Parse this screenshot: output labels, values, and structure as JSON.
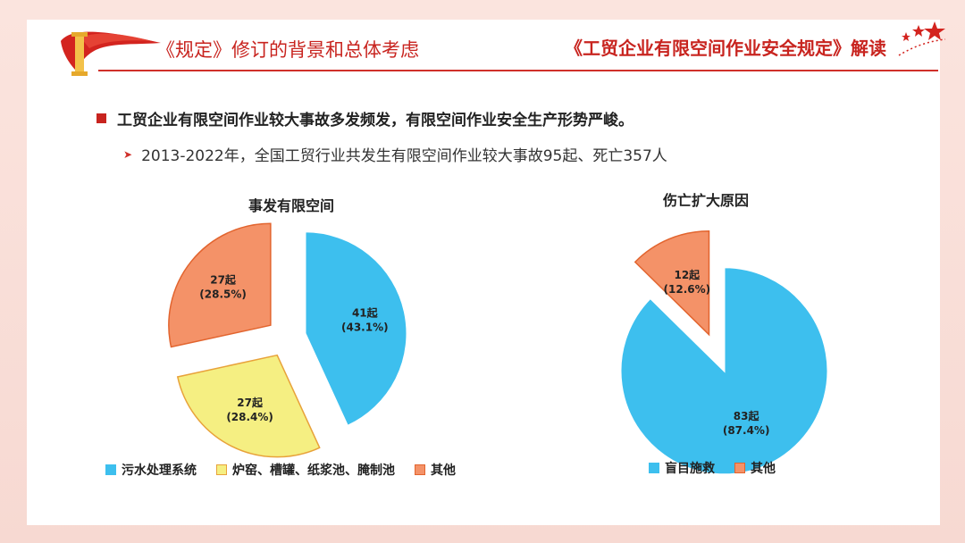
{
  "header": {
    "section_title": "《规定》修订的背景和总体考虑",
    "doc_title": "《工贸企业有限空间作业安全规定》解读"
  },
  "content": {
    "bullet": "工贸企业有限空间作业较大事故多发频发，有限空间作业安全生产形势严峻。",
    "sub_bullet": "2013-2022年，全国工贸行业共发生有限空间作业较大事故95起、死亡357人"
  },
  "colors": {
    "brand_red": "#c8241f",
    "blue": "#3dbfee",
    "yellow": "#f5ef82",
    "orange": "#f49268"
  },
  "chart_data": [
    {
      "type": "pie",
      "title": "事发有限空间",
      "slices": [
        {
          "name": "污水处理系统",
          "value": 41,
          "label": "41起",
          "percent_label": "(43.1%)",
          "color": "#3dbfee",
          "stroke": "#ffffff"
        },
        {
          "name": "炉窑、槽罐、纸浆池、腌制池",
          "value": 27,
          "label": "27起",
          "percent_label": "(28.4%)",
          "color": "#f5ef82",
          "stroke": "#e8a23a"
        },
        {
          "name": "其他",
          "value": 27,
          "label": "27起",
          "percent_label": "(28.5%)",
          "color": "#f49268",
          "stroke": "#e2642e"
        }
      ],
      "legend_position": "bottom"
    },
    {
      "type": "pie",
      "title": "伤亡扩大原因",
      "slices": [
        {
          "name": "盲目施救",
          "value": 83,
          "label": "83起",
          "percent_label": "(87.4%)",
          "color": "#3dbfee",
          "stroke": "#ffffff"
        },
        {
          "name": "其他",
          "value": 12,
          "label": "12起",
          "percent_label": "(12.6%)",
          "color": "#f49268",
          "stroke": "#e2642e"
        }
      ],
      "legend_position": "bottom"
    }
  ]
}
